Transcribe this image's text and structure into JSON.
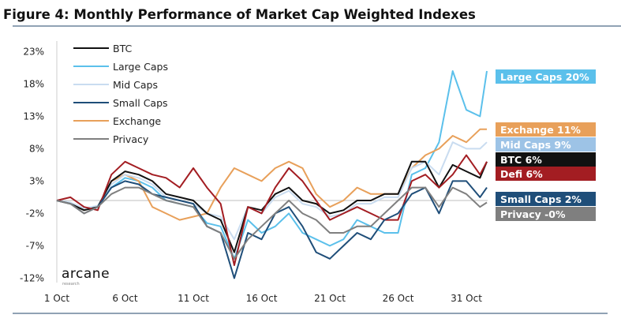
{
  "chart_data": {
    "type": "line",
    "title": "Figure 4: Monthly Performance of Market Cap Weighted Indexes",
    "xlabel": "",
    "ylabel": "",
    "ylim": [
      -12,
      23
    ],
    "y_ticks": [
      "23%",
      "18%",
      "13%",
      "8%",
      "3%",
      "-2%",
      "-7%",
      "-12%"
    ],
    "y_tick_values": [
      23,
      18,
      13,
      8,
      3,
      -2,
      -7,
      -12
    ],
    "x_ticks": [
      "1 Oct",
      "6 Oct",
      "11 Oct",
      "16 Oct",
      "21 Oct",
      "26 Oct",
      "31 Oct"
    ],
    "x_tick_days": [
      1,
      6,
      11,
      16,
      21,
      26,
      31
    ],
    "x_days": [
      1,
      2,
      3,
      4,
      5,
      6,
      7,
      8,
      9,
      10,
      11,
      12,
      13,
      14,
      15,
      16,
      17,
      18,
      19,
      20,
      21,
      22,
      23,
      24,
      25,
      26,
      27,
      28,
      29,
      30,
      31,
      32,
      32.5
    ],
    "grid": false,
    "zero_line": true,
    "legend_placement": "top-left",
    "legend": [
      "BTC",
      "Large Caps",
      "Mid Caps",
      "Small Caps",
      "Exchange",
      "Privacy"
    ],
    "series": [
      {
        "name": "Large Caps",
        "color": "#5bc0eb",
        "end_label": "Large Caps 20%",
        "label_color": "#5bc0eb",
        "values": [
          0,
          -0.5,
          -1.5,
          -1,
          2,
          3.5,
          3,
          2,
          0,
          -0.5,
          -1,
          -3.5,
          -4,
          -9,
          -3,
          -5,
          -4,
          -2,
          -5,
          -6,
          -7,
          -6,
          -3,
          -4,
          -5,
          -5,
          4,
          5,
          9,
          20,
          14,
          13,
          20
        ]
      },
      {
        "name": "Exchange",
        "color": "#e8a05a",
        "end_label": "Exchange 11%",
        "label_color": "#e8a05a",
        "values": [
          0,
          -0.5,
          -1.5,
          -1,
          3,
          4,
          3,
          -1,
          -2,
          -3,
          -2.5,
          -2,
          2,
          5,
          4,
          3,
          5,
          6,
          5,
          1,
          -1,
          0,
          2,
          1,
          1,
          1,
          5,
          7,
          8,
          10,
          9,
          11,
          11
        ]
      },
      {
        "name": "Mid Caps",
        "color": "#c9dcf0",
        "end_label": "Mid Caps 9%",
        "label_color": "#9dc3e6",
        "values": [
          0,
          -0.3,
          -1.2,
          -0.8,
          2.5,
          4,
          3.5,
          2.5,
          0.5,
          0,
          -0.5,
          -2,
          -2.5,
          -6,
          -1,
          -2,
          0.5,
          1.5,
          -0.5,
          -1,
          -2.5,
          -2,
          -0.5,
          -0.5,
          0.5,
          0.5,
          5,
          6,
          4,
          9,
          8,
          8,
          9
        ]
      },
      {
        "name": "BTC",
        "color": "#111111",
        "end_label": "BTC 6%",
        "label_color": "#111111",
        "values": [
          0,
          -0.5,
          -1.5,
          -1,
          3,
          4.5,
          4,
          3,
          1,
          0.5,
          0,
          -2,
          -3,
          -8,
          -1,
          -1.5,
          1,
          2,
          0,
          -0.5,
          -2,
          -1.5,
          0,
          0,
          1,
          1,
          6,
          6,
          2,
          5.5,
          4.5,
          3.5,
          6
        ]
      },
      {
        "name": "Defi",
        "color": "#a31d22",
        "end_label": "Defi 6%",
        "label_color": "#a31d22",
        "values": [
          0,
          0.5,
          -1,
          -1.5,
          4,
          6,
          5,
          4,
          3.5,
          2,
          5,
          2,
          -0.5,
          -10,
          -1,
          -2,
          2,
          5,
          3,
          0,
          -3,
          -2,
          -1,
          -2,
          -3,
          -3,
          3,
          4,
          2,
          4,
          7,
          4,
          6
        ]
      },
      {
        "name": "Small Caps",
        "color": "#1f4e79",
        "end_label": "Small Caps 2%",
        "label_color": "#1f4e79",
        "values": [
          0,
          -0.5,
          -2,
          -1,
          2,
          3,
          2.5,
          1,
          0.5,
          0,
          -0.5,
          -4,
          -5,
          -12,
          -5,
          -6,
          -2,
          -1,
          -4,
          -8,
          -9,
          -7,
          -5,
          -6,
          -3,
          -2,
          1,
          2,
          -2,
          3,
          3,
          0.5,
          2
        ]
      },
      {
        "name": "Privacy",
        "color": "#7f7f7f",
        "end_label": "Privacy -0%",
        "label_color": "#7f7f7f",
        "values": [
          0,
          -0.5,
          -2,
          -1,
          1,
          2,
          2,
          1,
          0,
          -0.5,
          -1,
          -4,
          -5,
          -9,
          -6,
          -4,
          -2,
          0,
          -2,
          -3,
          -5,
          -5,
          -4,
          -4,
          -2,
          0,
          2,
          2,
          -1,
          2,
          1,
          -1,
          -0.3
        ]
      }
    ],
    "legend_colors": [
      "#111111",
      "#5bc0eb",
      "#c9dcf0",
      "#1f4e79",
      "#e8a05a",
      "#7f7f7f"
    ]
  },
  "logo": {
    "name": "arcane",
    "sub": "research"
  }
}
